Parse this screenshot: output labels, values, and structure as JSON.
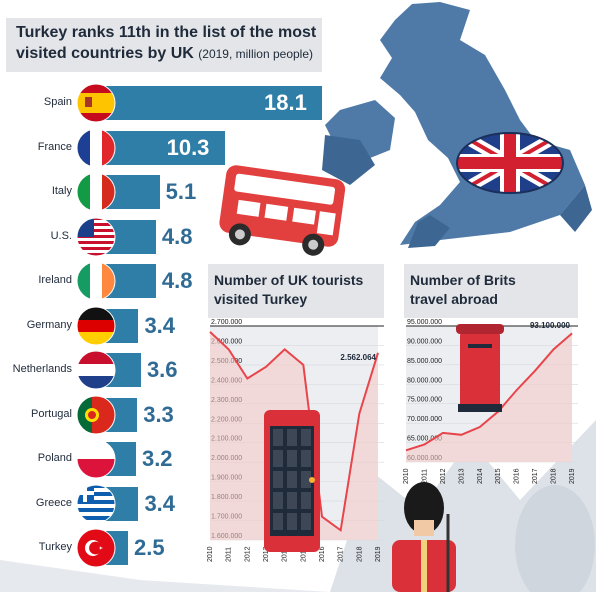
{
  "main_chart": {
    "title_line1": "Turkey ranks 11th in the list of the most",
    "title_line2": "visited countries by UK",
    "title_sub": "(2019, million people)"
  },
  "tourists_panel": {
    "title_line1": "Number of UK tourists",
    "title_line2": "visited Turkey",
    "peak_label": "2.562.064"
  },
  "brits_panel": {
    "title_line1": "Number of Brits",
    "title_line2": "travel abroad",
    "peak_label": "93.100.000"
  },
  "chart_data": [
    {
      "type": "bar",
      "orientation": "horizontal",
      "title": "Turkey ranks 11th in the list of the most visited countries by UK (2019, million people)",
      "categories": [
        "Spain",
        "France",
        "Italy",
        "U.S.",
        "Ireland",
        "Germany",
        "Netherlands",
        "Portugal",
        "Poland",
        "Greece",
        "Turkey"
      ],
      "values": [
        18.1,
        10.3,
        5.1,
        4.8,
        4.8,
        3.4,
        3.6,
        3.3,
        3.2,
        3.4,
        2.5
      ],
      "value_labels": [
        "18.1",
        "10.3",
        "5.1",
        "4.8",
        "4.8",
        "3.4",
        "3.6",
        "3.3",
        "3.2",
        "3.4",
        "2.5"
      ],
      "icons": [
        "spain-flag-icon",
        "france-flag-icon",
        "italy-flag-icon",
        "us-flag-icon",
        "ireland-flag-icon",
        "germany-flag-icon",
        "netherlands-flag-icon",
        "portugal-flag-icon",
        "poland-flag-icon",
        "greece-flag-icon",
        "turkey-flag-icon"
      ],
      "bar_color": "#2f7ea8"
    },
    {
      "type": "line",
      "title": "Number of UK tourists visited Turkey",
      "x": [
        "2010",
        "2011",
        "2012",
        "2013",
        "2014",
        "2015",
        "2016",
        "2017",
        "2018",
        "2019"
      ],
      "values": [
        2670000,
        2580000,
        2430000,
        2490000,
        2580000,
        2500000,
        1720000,
        1650000,
        2250000,
        2562064
      ],
      "ylim": [
        1600000,
        2700000
      ],
      "yticks": [
        "2.700.000",
        "2.600.000",
        "2.500.000",
        "2.400.000",
        "2.300.000",
        "2.200.000",
        "2.100.000",
        "2.000.000",
        "1.900.000",
        "1.800.000",
        "1.700.000",
        "1.600.000"
      ],
      "annotation": "2.562.064",
      "line_color": "#e8454b"
    },
    {
      "type": "line",
      "title": "Number of Brits travel abroad",
      "x": [
        "2010",
        "2011",
        "2012",
        "2013",
        "2014",
        "2015",
        "2016",
        "2017",
        "2018",
        "2019"
      ],
      "values": [
        63000000,
        64500000,
        67500000,
        67000000,
        69000000,
        73000000,
        78500000,
        83500000,
        89000000,
        93100000
      ],
      "ylim": [
        60000000,
        95000000
      ],
      "yticks": [
        "95.000.000",
        "90.000.000",
        "85.000.000",
        "80.000.000",
        "75.000.000",
        "70.000.000",
        "65.000.000",
        "60.000.000"
      ],
      "annotation": "93.100.000",
      "line_color": "#e8454b"
    }
  ],
  "colors": {
    "bar": "#2f7ea8",
    "value_dark": "#2f6b95",
    "title_bg": "#e3e5e8",
    "panel_bg": "#eceef1",
    "line": "#e8454b",
    "map": "#4f7aa8"
  }
}
